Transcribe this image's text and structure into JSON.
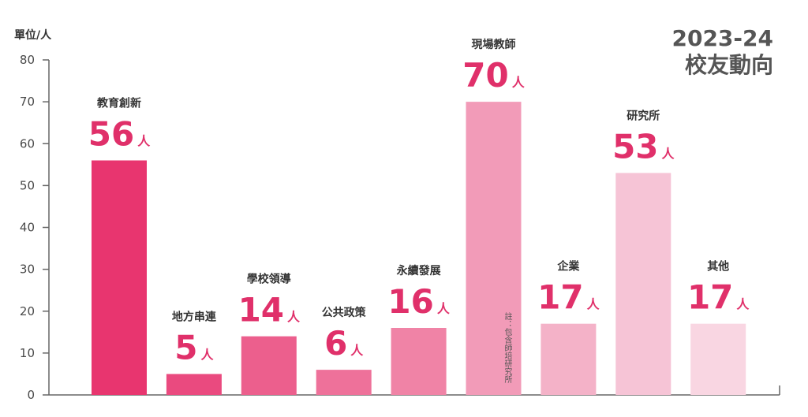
{
  "chart_data": {
    "type": "bar",
    "title": [
      "2023-24",
      "校友動向"
    ],
    "ylabel": "單位/人",
    "ylim": [
      0,
      80
    ],
    "yticks": [
      0,
      10,
      20,
      30,
      40,
      50,
      60,
      70,
      80
    ],
    "unit": "人",
    "categories": [
      "教育創新",
      "地方串連",
      "學校領導",
      "公共政策",
      "永續發展",
      "現場教師",
      "企業",
      "研究所",
      "其他"
    ],
    "values": [
      56,
      5,
      14,
      6,
      16,
      70,
      17,
      53,
      17
    ],
    "bar_colors": [
      "#e8356f",
      "#ea4a7f",
      "#ec5f8d",
      "#ee719a",
      "#f083a6",
      "#f29bb8",
      "#f4b2c8",
      "#f6c4d6",
      "#f9d6e2"
    ],
    "value_color": "#e0306a",
    "annotation": "註：包含師培研究所",
    "grid": false
  }
}
